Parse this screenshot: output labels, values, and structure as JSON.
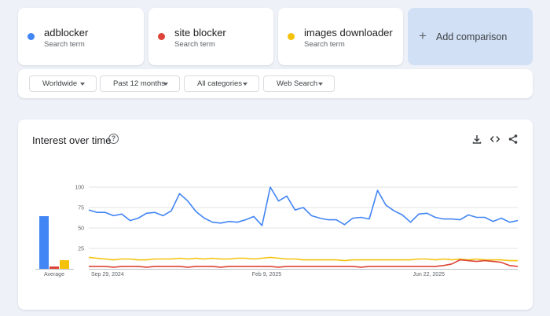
{
  "terms": [
    {
      "name": "adblocker",
      "subtitle": "Search term",
      "color": "#4285f4"
    },
    {
      "name": "site blocker",
      "subtitle": "Search term",
      "color": "#db4437"
    },
    {
      "name": "images downloader",
      "subtitle": "Search term",
      "color": "#f4c20d"
    }
  ],
  "add_comparison": {
    "icon": "plus-icon",
    "label": "Add comparison"
  },
  "filters": [
    {
      "label": "Worldwide"
    },
    {
      "label": "Past 12 months"
    },
    {
      "label": "All categories"
    },
    {
      "label": "Web Search"
    }
  ],
  "panel": {
    "title": "Interest over time",
    "icons": [
      "help-icon",
      "download-icon",
      "embed-code-icon",
      "share-icon"
    ]
  },
  "chart_data": [
    {
      "type": "bar",
      "categories": [
        "Average"
      ],
      "series": [
        {
          "name": "adblocker",
          "color": "#4285f4",
          "values": [
            67
          ]
        },
        {
          "name": "site blocker",
          "color": "#db4437",
          "values": [
            3
          ]
        },
        {
          "name": "images downloader",
          "color": "#f4c20d",
          "values": [
            11
          ]
        }
      ],
      "ylim": [
        0,
        100
      ]
    },
    {
      "type": "line",
      "x_tick_labels": [
        "Sep 29, 2024",
        "Feb 9, 2025",
        "Jun 22, 2025"
      ],
      "y_ticks": [
        25,
        50,
        75,
        100
      ],
      "ylim": [
        0,
        100
      ],
      "grid": true,
      "series": [
        {
          "name": "adblocker",
          "color": "#4285f4",
          "values": [
            72,
            69,
            69,
            65,
            67,
            59,
            62,
            68,
            69,
            65,
            71,
            92,
            83,
            70,
            62,
            57,
            56,
            58,
            57,
            60,
            64,
            53,
            100,
            83,
            89,
            72,
            75,
            65,
            62,
            60,
            60,
            54,
            62,
            63,
            61,
            96,
            78,
            71,
            66,
            57,
            67,
            68,
            63,
            61,
            61,
            60,
            66,
            63,
            63,
            58,
            62,
            57,
            59
          ]
        },
        {
          "name": "site blocker",
          "color": "#db4437",
          "values": [
            3,
            3,
            3,
            2,
            3,
            3,
            3,
            2,
            3,
            3,
            3,
            3,
            2,
            3,
            3,
            3,
            2,
            3,
            3,
            3,
            3,
            3,
            3,
            2,
            3,
            3,
            3,
            3,
            3,
            3,
            3,
            3,
            3,
            2,
            3,
            3,
            3,
            3,
            3,
            3,
            3,
            3,
            3,
            4,
            6,
            11,
            10,
            9,
            10,
            9,
            8,
            4,
            3
          ]
        },
        {
          "name": "images downloader",
          "color": "#f4c20d",
          "values": [
            14,
            13,
            12,
            11,
            12,
            12,
            11,
            11,
            12,
            12,
            12,
            13,
            12,
            13,
            12,
            13,
            12,
            12,
            13,
            13,
            12,
            13,
            14,
            13,
            12,
            12,
            11,
            11,
            11,
            11,
            11,
            10,
            11,
            11,
            11,
            11,
            11,
            11,
            11,
            11,
            12,
            12,
            11,
            12,
            11,
            12,
            11,
            12,
            11,
            11,
            11,
            10,
            10
          ]
        }
      ]
    }
  ]
}
